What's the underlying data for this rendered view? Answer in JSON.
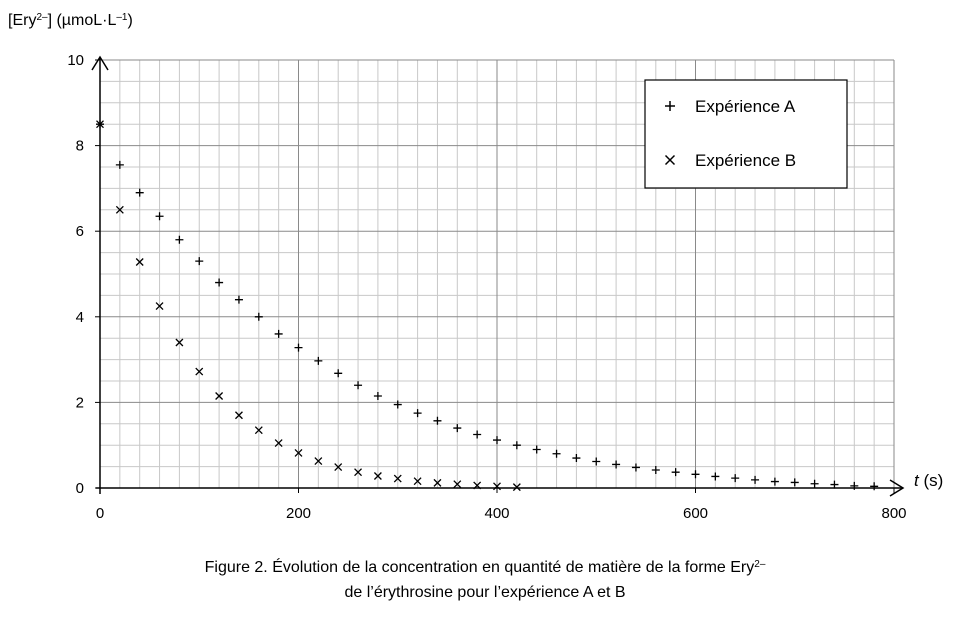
{
  "chart_data": {
    "type": "scatter",
    "y_label": [
      "[Ery",
      "2–",
      "] (µmoL·L",
      "–1",
      ")"
    ],
    "x_label": [
      "t",
      " (s)"
    ],
    "caption": [
      [
        "Figure 2. Évolution de la concentration en quantité de matière de la forme Ery",
        "2–"
      ],
      [
        "de l’érythrosine pour l’expérience A et B"
      ]
    ],
    "xlim": [
      0,
      800
    ],
    "xticks": [
      0,
      200,
      400,
      600,
      800
    ],
    "ylim": [
      0,
      10
    ],
    "yticks": [
      0,
      2,
      4,
      6,
      8,
      10
    ],
    "grid": true,
    "legend": "upper right",
    "series": [
      {
        "name": "Expérience A",
        "marker": "+",
        "color": "#000000",
        "x": [
          0,
          20,
          40,
          60,
          80,
          100,
          120,
          140,
          160,
          180,
          200,
          220,
          240,
          260,
          280,
          300,
          320,
          340,
          360,
          380,
          400,
          420,
          440,
          460,
          480,
          500,
          520,
          540,
          560,
          580,
          600,
          620,
          640,
          660,
          680,
          700,
          720,
          740,
          760,
          780
        ],
        "values": [
          8.5,
          7.55,
          6.9,
          6.35,
          5.8,
          5.3,
          4.8,
          4.4,
          4.0,
          3.6,
          3.28,
          2.97,
          2.68,
          2.4,
          2.15,
          1.95,
          1.75,
          1.57,
          1.4,
          1.25,
          1.12,
          1.0,
          0.9,
          0.8,
          0.7,
          0.62,
          0.55,
          0.48,
          0.42,
          0.37,
          0.32,
          0.27,
          0.23,
          0.19,
          0.15,
          0.13,
          0.1,
          0.08,
          0.05,
          0.04
        ]
      },
      {
        "name": "Expérience B",
        "marker": "x",
        "color": "#000000",
        "x": [
          0,
          20,
          40,
          60,
          80,
          100,
          120,
          140,
          160,
          180,
          200,
          220,
          240,
          260,
          280,
          300,
          320,
          340,
          360,
          380,
          400,
          420
        ],
        "values": [
          8.5,
          6.5,
          5.28,
          4.25,
          3.4,
          2.72,
          2.15,
          1.7,
          1.35,
          1.05,
          0.82,
          0.63,
          0.49,
          0.37,
          0.28,
          0.22,
          0.16,
          0.12,
          0.09,
          0.06,
          0.04,
          0.02
        ]
      }
    ]
  }
}
